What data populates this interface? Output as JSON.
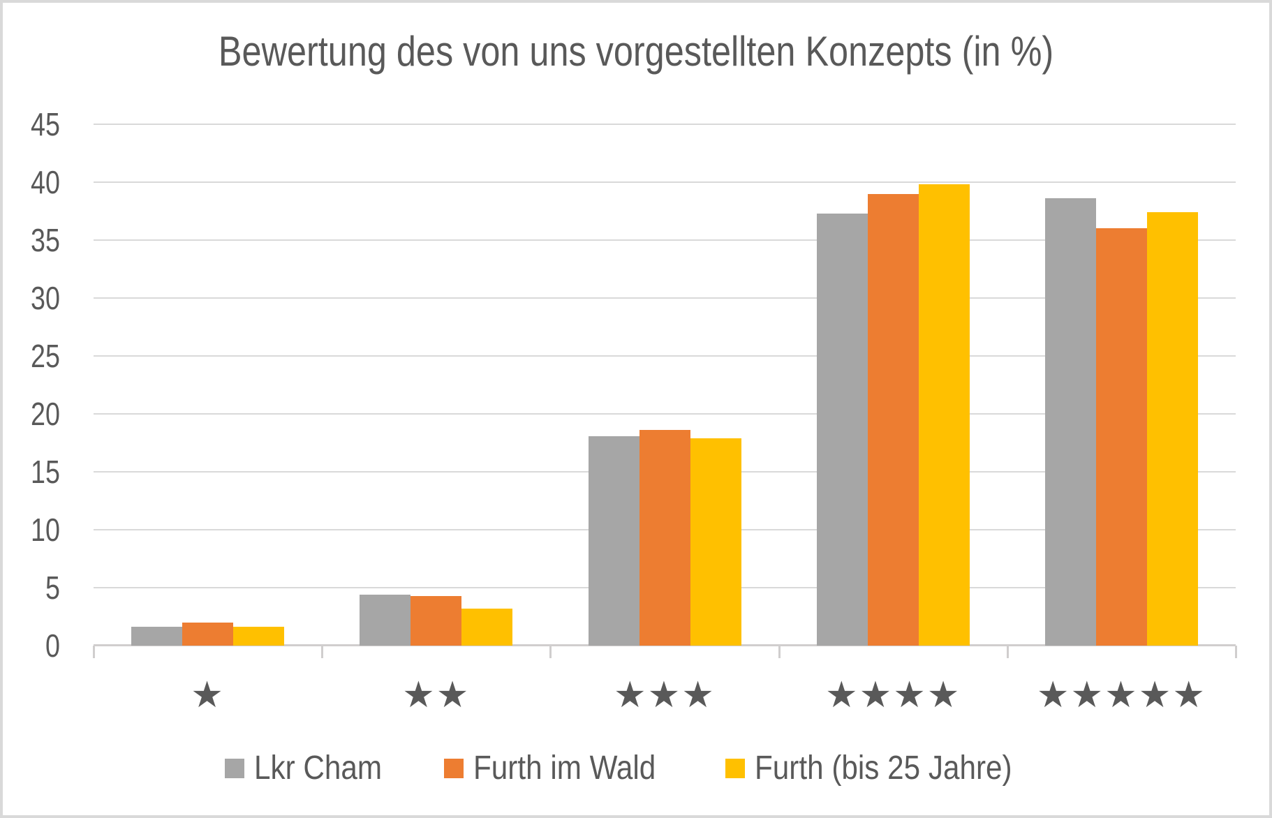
{
  "chart": {
    "title": "Bewertung des von uns vorgestellten Konzepts (in %)"
  },
  "chart_data": {
    "type": "bar",
    "title": "Bewertung des von uns vorgestellten Konzepts (in %)",
    "xlabel": "",
    "ylabel": "",
    "categories": [
      "★",
      "★★",
      "★★★",
      "★★★★",
      "★★★★★"
    ],
    "category_star_counts": [
      1,
      2,
      3,
      4,
      5
    ],
    "series": [
      {
        "name": "Lkr Cham",
        "color": "#A6A6A6",
        "values": [
          1.6,
          4.4,
          18.1,
          37.3,
          38.6
        ]
      },
      {
        "name": "Furth im Wald",
        "color": "#ED7D31",
        "values": [
          2.0,
          4.3,
          18.6,
          39.0,
          36.0
        ]
      },
      {
        "name": "Furth (bis 25 Jahre)",
        "color": "#FFC000",
        "values": [
          1.6,
          3.2,
          17.9,
          39.8,
          37.4
        ]
      }
    ],
    "ylim": [
      0,
      45
    ],
    "y_ticks": [
      45,
      40,
      35,
      30,
      25,
      20,
      15,
      10,
      5,
      0
    ],
    "grid": true,
    "legend_position": "bottom"
  },
  "colors": {
    "text": "#595959",
    "gridline": "#D9D9D9",
    "axis_line": "#D0CECE",
    "frame_border": "#D9D9D9",
    "background": "#FFFFFF"
  }
}
